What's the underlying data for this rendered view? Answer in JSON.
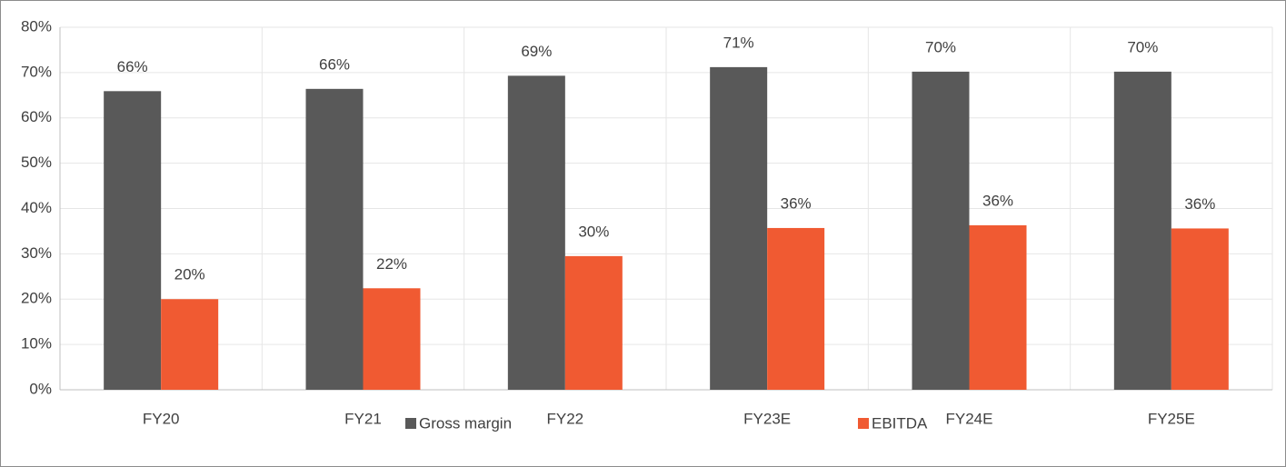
{
  "chart_data": {
    "type": "bar",
    "categories": [
      "FY20",
      "FY21",
      "FY22",
      "FY23E",
      "FY24E",
      "FY25E"
    ],
    "series": [
      {
        "name": "Gross margin",
        "color": "#595959",
        "values": [
          65.9,
          66.4,
          69.3,
          71.2,
          70.2,
          70.2
        ],
        "value_labels": [
          "66%",
          "66%",
          "69%",
          "71%",
          "70%",
          "70%"
        ]
      },
      {
        "name": "EBITDA",
        "color": "#f05a32",
        "values": [
          20,
          22.4,
          29.5,
          35.7,
          36.3,
          35.6
        ],
        "value_labels": [
          "20%",
          "22%",
          "30%",
          "36%",
          "36%",
          "36%"
        ]
      }
    ],
    "ylim": [
      0,
      80
    ],
    "yticks": [
      {
        "value": 0,
        "label": "0%"
      },
      {
        "value": 10,
        "label": "10%"
      },
      {
        "value": 20,
        "label": "20%"
      },
      {
        "value": 30,
        "label": "30%"
      },
      {
        "value": 40,
        "label": "40%"
      },
      {
        "value": 50,
        "label": "50%"
      },
      {
        "value": 60,
        "label": "60%"
      },
      {
        "value": 70,
        "label": "70%"
      },
      {
        "value": 80,
        "label": "80%"
      }
    ],
    "grid": true,
    "legend": "bottom"
  }
}
